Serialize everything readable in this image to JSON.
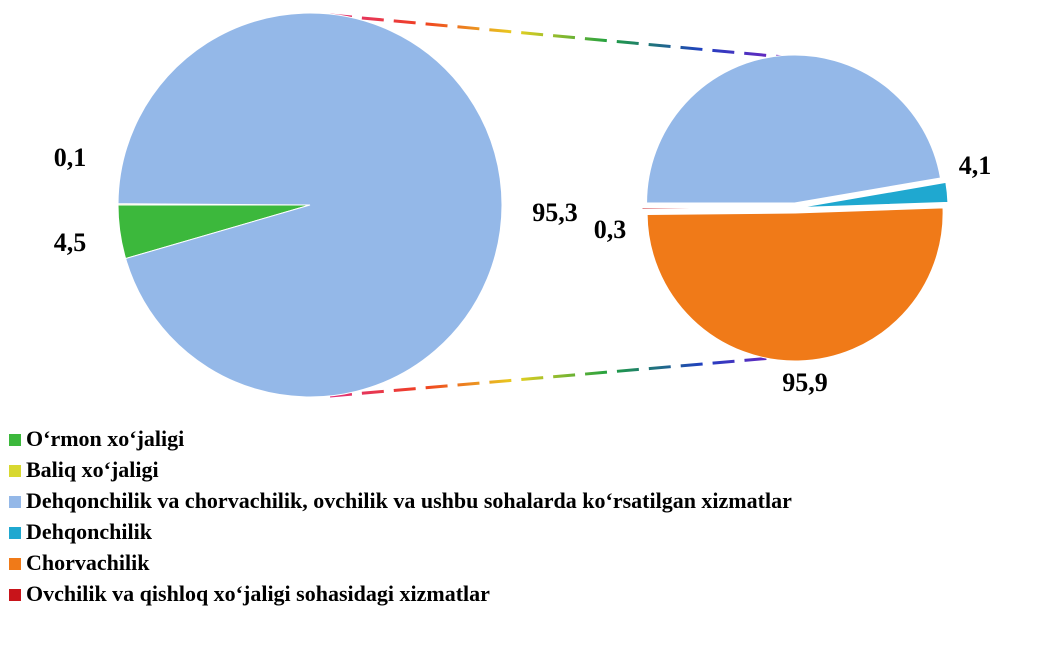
{
  "chart_data": {
    "type": "pie_of_pie",
    "series": [
      {
        "name": "O‘rmon xo‘jaligi",
        "color": "#3cb83c",
        "values": [
          4.5,
          null
        ],
        "value_labels": [
          "4,5",
          null
        ]
      },
      {
        "name": "Baliq xo‘jaligi",
        "color": "#d8d830",
        "values": [
          0.1,
          null
        ],
        "value_labels": [
          "0,1",
          null
        ]
      },
      {
        "name": "Dehqonchilik va chorvachilik, ovchilik va ushbu sohalarda ko‘rsatilgan xizmatlar",
        "color": "#94b8e8",
        "values": [
          95.3,
          90
        ],
        "value_labels": [
          "95,3",
          null
        ]
      },
      {
        "name": "Dehqonchilik",
        "color": "#1fa8d0",
        "values": [
          null,
          4.1
        ],
        "value_labels": [
          null,
          "4,1"
        ]
      },
      {
        "name": "Chorvachilik",
        "color": "#f07a18",
        "values": [
          null,
          95.9
        ],
        "value_labels": [
          null,
          "95,9"
        ]
      },
      {
        "name": "Ovchilik va qishloq xo‘jaligi sohasidagi xizmatlar",
        "color": "#c8141a",
        "values": [
          null,
          0.3
        ],
        "value_labels": [
          null,
          "0,3"
        ]
      }
    ]
  }
}
